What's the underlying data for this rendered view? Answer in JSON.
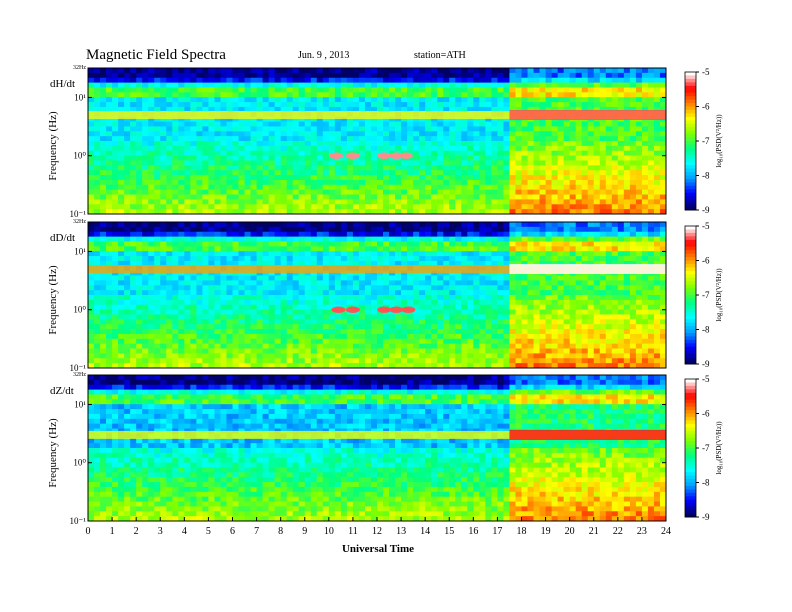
{
  "header": {
    "title": "Magnetic  Field  Spectra",
    "date": "Jun. 9  , 2013",
    "station": "station=ATH"
  },
  "chart_data": [
    {
      "type": "heatmap",
      "panel_label": "dH/dt",
      "ylabel": "Frequency  (Hz)",
      "y_scale": "log",
      "ylim": [
        0.1,
        32
      ],
      "y_tick_labels": [
        "32Hz",
        "10¹",
        "10⁰",
        "10⁻¹"
      ],
      "colorbar": {
        "label": "log₁₀(PSD(V²/Hz))",
        "range": [
          -9,
          -5
        ],
        "tick_labels": [
          "-5",
          "-6",
          "-7",
          "-8",
          "-9"
        ]
      },
      "features": [
        {
          "name": "power-line band",
          "freq_hz": 5.0,
          "level": -6.3
        },
        {
          "name": "bursts",
          "times_ut": [
            10.3,
            11.0,
            12.3,
            12.8,
            13.2
          ],
          "freq_hz": 1.0,
          "level": -5.2
        }
      ]
    },
    {
      "type": "heatmap",
      "panel_label": "dD/dt",
      "ylabel": "Frequency  (Hz)",
      "y_scale": "log",
      "ylim": [
        0.1,
        32
      ],
      "y_tick_labels": [
        "32Hz",
        "10¹",
        "10⁰",
        "10⁻¹"
      ],
      "colorbar": {
        "label": "log₁₀(PSD(V²/Hz))",
        "range": [
          -9,
          -5
        ],
        "tick_labels": [
          "-5",
          "-6",
          "-7",
          "-8",
          "-9"
        ]
      },
      "features": [
        {
          "name": "power-line band",
          "freq_hz": 5.0,
          "level": -6.0
        },
        {
          "name": "bursts",
          "times_ut": [
            10.4,
            11.0,
            12.3,
            12.8,
            13.3
          ],
          "freq_hz": 1.0,
          "level": -5.3
        }
      ]
    },
    {
      "type": "heatmap",
      "panel_label": "dZ/dt",
      "ylabel": "Frequency  (Hz)",
      "y_scale": "log",
      "ylim": [
        0.1,
        32
      ],
      "y_tick_labels": [
        "32Hz",
        "10¹",
        "10⁰",
        "10⁻¹"
      ],
      "colorbar": {
        "label": "log₁₀(PSD(V²/Hz))",
        "range": [
          -9,
          -5
        ],
        "tick_labels": [
          "-5",
          "-6",
          "-7",
          "-8",
          "-9"
        ]
      },
      "features": [
        {
          "name": "power-line band",
          "freq_hz": 3.0,
          "level": -6.4
        }
      ]
    }
  ],
  "x_axis": {
    "label": "Universal Time",
    "range": [
      0,
      24
    ],
    "tick_labels": [
      "0",
      "1",
      "2",
      "3",
      "4",
      "5",
      "6",
      "7",
      "8",
      "9",
      "10",
      "11",
      "12",
      "13",
      "14",
      "15",
      "16",
      "17",
      "18",
      "19",
      "20",
      "21",
      "22",
      "23",
      "24"
    ]
  },
  "colors": {
    "colormap": [
      "#000066",
      "#0000ff",
      "#00a0ff",
      "#00ffff",
      "#00ff80",
      "#80ff00",
      "#ffff00",
      "#ff8000",
      "#ff0000",
      "#ffffff"
    ]
  }
}
